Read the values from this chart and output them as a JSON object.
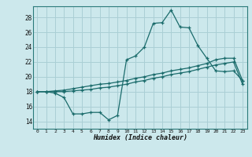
{
  "xlabel": "Humidex (Indice chaleur)",
  "bg_color": "#cce8ec",
  "grid_color": "#aacfd5",
  "line_color": "#1a6b6b",
  "xlim": [
    -0.5,
    23.5
  ],
  "ylim": [
    13.0,
    29.5
  ],
  "xticks": [
    0,
    1,
    2,
    3,
    4,
    5,
    6,
    7,
    8,
    9,
    10,
    11,
    12,
    13,
    14,
    15,
    16,
    17,
    18,
    19,
    20,
    21,
    22,
    23
  ],
  "yticks": [
    14,
    16,
    18,
    20,
    22,
    24,
    26,
    28
  ],
  "series": [
    [
      18.0,
      18.0,
      17.8,
      17.2,
      15.0,
      15.0,
      15.2,
      15.2,
      14.2,
      14.8,
      22.3,
      22.8,
      24.0,
      27.2,
      27.3,
      29.0,
      26.7,
      26.6,
      24.2,
      22.5,
      20.8,
      20.7,
      20.8,
      19.5
    ],
    [
      18.0,
      18.0,
      18.0,
      18.0,
      18.1,
      18.2,
      18.3,
      18.5,
      18.6,
      18.8,
      19.0,
      19.3,
      19.5,
      19.8,
      20.0,
      20.3,
      20.5,
      20.7,
      21.0,
      21.3,
      21.6,
      21.8,
      22.0,
      19.0
    ],
    [
      18.0,
      18.0,
      18.1,
      18.2,
      18.4,
      18.6,
      18.8,
      19.0,
      19.1,
      19.3,
      19.5,
      19.8,
      20.0,
      20.3,
      20.5,
      20.8,
      21.0,
      21.2,
      21.5,
      21.8,
      22.3,
      22.5,
      22.5,
      19.5
    ]
  ]
}
